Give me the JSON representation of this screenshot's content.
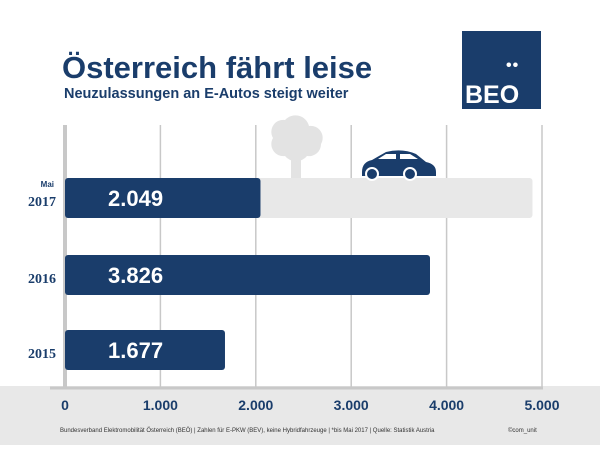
{
  "header": {
    "title": "Österreich fährt leise",
    "subtitle": "Neuzulassungen an E-Autos steigt weiter"
  },
  "logo": {
    "dots": "••",
    "text": "BEO"
  },
  "footer": {
    "source": "Bundesverband Elektromobilität Österreich (BEÖ) | Zahlen für E-PKW (BEV), keine Hybridfahrzeuge | *bis Mai 2017 | Quelle: Statistik Austria",
    "copyright": "©com_unit"
  },
  "colors": {
    "bar": "#1a3d6b",
    "track": "#e8e8e8",
    "grid": "#c8c8c8"
  },
  "chart_data": {
    "type": "bar",
    "orientation": "horizontal",
    "categories": [
      "2017",
      "2016",
      "2015"
    ],
    "category_notes": [
      "Mai",
      "",
      ""
    ],
    "values": [
      2049,
      3826,
      1677
    ],
    "value_labels": [
      "2.049",
      "3.826",
      "1.677"
    ],
    "track_value_2017": 4900,
    "xlim": [
      0,
      5000
    ],
    "xticks": [
      0,
      1000,
      2000,
      3000,
      4000,
      5000
    ],
    "xtick_labels": [
      "0",
      "1.000",
      "2.000",
      "3.000",
      "4.000",
      "5.000"
    ],
    "grid": true
  }
}
